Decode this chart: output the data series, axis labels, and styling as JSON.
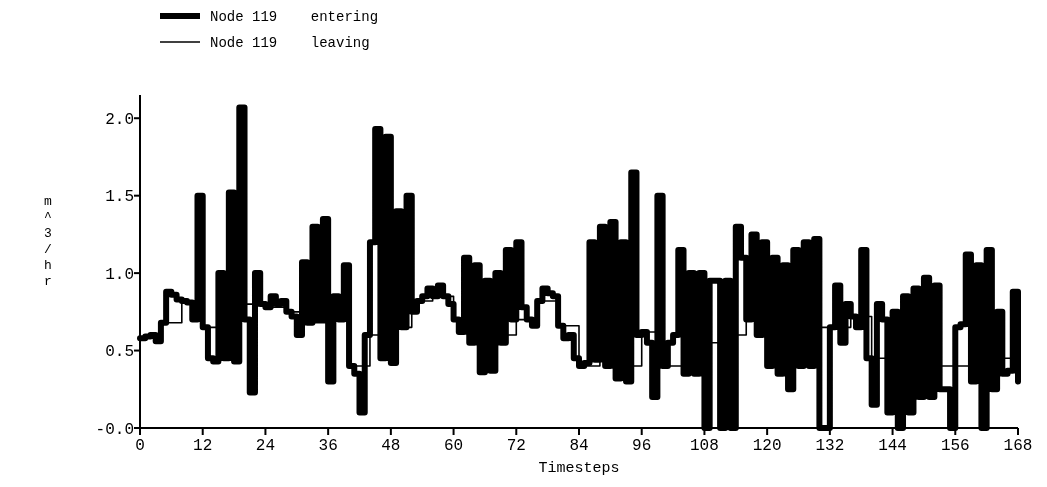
{
  "chart_data": {
    "type": "step",
    "xlabel": "Timesteps",
    "ylabel": "m^3/hr",
    "xlim": [
      0,
      168
    ],
    "ylim": [
      0,
      2.15
    ],
    "xticks": [
      0,
      12,
      24,
      36,
      48,
      60,
      72,
      84,
      96,
      108,
      120,
      132,
      144,
      156,
      168
    ],
    "yticks": [
      {
        "value": 0,
        "label": "-0.0"
      },
      {
        "value": 0.5,
        "label": "0.5"
      },
      {
        "value": 1,
        "label": "1.0"
      },
      {
        "value": 1.5,
        "label": "1.5"
      },
      {
        "value": 2,
        "label": "2.0"
      }
    ],
    "legend": "top left",
    "grid": false,
    "line_style": "solid",
    "series": [
      {
        "name": "Node 119    entering",
        "color": "#000000",
        "x": [
          0,
          1,
          2,
          3,
          4,
          5,
          6,
          7,
          8,
          9,
          10,
          11,
          12,
          13,
          14,
          15,
          16,
          17,
          18,
          19,
          20,
          21,
          22,
          23,
          24,
          25,
          26,
          27,
          28,
          29,
          30,
          31,
          32,
          33,
          34,
          35,
          36,
          37,
          38,
          39,
          40,
          41,
          42,
          43,
          44,
          45,
          46,
          47,
          48,
          49,
          50,
          51,
          52,
          53,
          54,
          55,
          56,
          57,
          58,
          59,
          60,
          61,
          62,
          63,
          64,
          65,
          66,
          67,
          68,
          69,
          70,
          71,
          72,
          73,
          74,
          75,
          76,
          77,
          78,
          79,
          80,
          81,
          82,
          83,
          84,
          85,
          86,
          87,
          88,
          89,
          90,
          91,
          92,
          93,
          94,
          95,
          96,
          97,
          98,
          99,
          100,
          101,
          102,
          103,
          104,
          105,
          106,
          107,
          108,
          109,
          110,
          111,
          112,
          113,
          114,
          115,
          116,
          117,
          118,
          119,
          120,
          121,
          122,
          123,
          124,
          125,
          126,
          127,
          128,
          129,
          130,
          131,
          132,
          133,
          134,
          135,
          136,
          137,
          138,
          139,
          140,
          141,
          142,
          143,
          144,
          145,
          146,
          147,
          148,
          149,
          150,
          151,
          152,
          153,
          154,
          155,
          156,
          157,
          158,
          159,
          160,
          161,
          162,
          163,
          164,
          165,
          166,
          167,
          168
        ],
        "values": [
          0.58,
          0.59,
          0.6,
          0.56,
          0.68,
          0.88,
          0.86,
          0.83,
          0.82,
          0.81,
          0.7,
          1.5,
          0.65,
          0.45,
          0.43,
          1.0,
          0.45,
          1.52,
          0.43,
          2.07,
          0.7,
          0.23,
          1.0,
          0.8,
          0.78,
          0.85,
          0.8,
          0.82,
          0.75,
          0.72,
          0.6,
          1.07,
          0.68,
          1.3,
          0.7,
          1.35,
          0.3,
          0.85,
          0.7,
          1.05,
          0.4,
          0.35,
          0.1,
          0.6,
          1.2,
          1.93,
          0.45,
          1.88,
          0.42,
          1.4,
          0.65,
          1.5,
          0.75,
          0.82,
          0.85,
          0.9,
          0.85,
          0.92,
          0.85,
          0.8,
          0.7,
          0.62,
          1.1,
          0.55,
          1.05,
          0.36,
          0.95,
          0.37,
          1.0,
          0.55,
          1.15,
          0.7,
          1.2,
          0.78,
          0.7,
          0.66,
          0.82,
          0.9,
          0.87,
          0.85,
          0.66,
          0.58,
          0.6,
          0.45,
          0.4,
          0.42,
          1.2,
          0.44,
          1.3,
          0.4,
          1.33,
          0.32,
          1.2,
          0.3,
          1.65,
          0.6,
          0.62,
          0.55,
          0.2,
          1.5,
          0.4,
          0.55,
          0.6,
          1.15,
          0.35,
          1.0,
          0.35,
          1.0,
          0.0,
          0.95,
          0.95,
          0.0,
          0.95,
          0.0,
          1.3,
          1.1,
          0.7,
          1.25,
          0.6,
          1.2,
          0.4,
          1.1,
          0.35,
          1.05,
          0.25,
          1.15,
          0.4,
          1.2,
          0.4,
          1.22,
          0.0,
          0.0,
          0.65,
          0.92,
          0.55,
          0.8,
          0.72,
          0.65,
          1.15,
          0.45,
          0.15,
          0.8,
          0.7,
          0.1,
          0.75,
          0.0,
          0.85,
          0.1,
          0.9,
          0.2,
          0.97,
          0.2,
          0.92,
          0.25,
          0.25,
          0.0,
          0.65,
          0.67,
          1.12,
          0.3,
          1.05,
          0.0,
          1.15,
          0.25,
          0.75,
          0.35,
          0.37,
          0.88,
          0.3
        ]
      },
      {
        "name": "Node 119    leaving",
        "color": "#000000",
        "x": [
          0,
          4,
          8,
          12,
          16,
          20,
          24,
          28,
          32,
          36,
          40,
          44,
          48,
          52,
          56,
          60,
          64,
          68,
          72,
          76,
          80,
          84,
          88,
          92,
          96,
          100,
          104,
          108,
          112,
          116,
          120,
          124,
          128,
          132,
          136,
          140,
          144,
          148,
          152,
          156,
          160,
          164,
          168
        ],
        "values": [
          0.58,
          0.68,
          0.82,
          0.65,
          0.78,
          0.8,
          0.78,
          0.75,
          0.68,
          0.7,
          0.4,
          0.6,
          0.65,
          0.82,
          0.85,
          0.7,
          0.55,
          0.6,
          0.7,
          0.82,
          0.66,
          0.4,
          0.44,
          0.4,
          0.62,
          0.4,
          0.55,
          0.55,
          0.6,
          0.7,
          0.65,
          0.6,
          0.65,
          0.65,
          0.72,
          0.45,
          0.5,
          0.45,
          0.4,
          0.4,
          0.5,
          0.45,
          0.3
        ]
      }
    ]
  }
}
